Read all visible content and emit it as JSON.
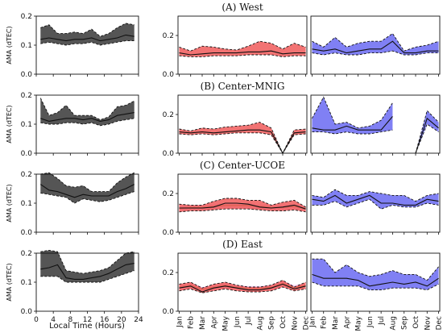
{
  "figure": {
    "xlabel_left": "Local Time (Hours)",
    "ylabel": "AMA (dTEC)",
    "row_titles": [
      "(A) West",
      "(B) Center-MNIG",
      "(C) Center-UCOE",
      "(D) East"
    ],
    "hour_ticks": [
      "0",
      "4",
      "8",
      "12",
      "16",
      "20",
      "24"
    ],
    "month_ticks": [
      "Jan",
      "Feb",
      "Mar",
      "Apr",
      "May",
      "Jun",
      "Jul",
      "Aug",
      "Sep",
      "Oct",
      "Nov",
      "Dec"
    ],
    "y_ticks": [
      "0.0",
      "0.1",
      "0.2"
    ],
    "y_ticks_right": [
      "0.0",
      "0.2"
    ]
  },
  "colors": {
    "hourly": "#555555",
    "red": "#f05a5a",
    "blue": "#6a6af2",
    "pink": "#f7c6f0",
    "olive": "#8a8a2a"
  },
  "chart_data": [
    {
      "type": "area",
      "row": "(A) West",
      "column": "hourly",
      "ylim": [
        0,
        0.2
      ],
      "xlim": [
        0,
        24
      ],
      "x": [
        1,
        3,
        5,
        7,
        9,
        11,
        13,
        15,
        17,
        19,
        21,
        23
      ],
      "mean": [
        0.12,
        0.125,
        0.12,
        0.115,
        0.12,
        0.12,
        0.125,
        0.115,
        0.12,
        0.125,
        0.135,
        0.13
      ],
      "upper": [
        0.16,
        0.17,
        0.14,
        0.14,
        0.145,
        0.14,
        0.155,
        0.13,
        0.14,
        0.16,
        0.175,
        0.17
      ],
      "lower": [
        0.105,
        0.11,
        0.105,
        0.1,
        0.105,
        0.105,
        0.11,
        0.1,
        0.105,
        0.11,
        0.115,
        0.115
      ]
    },
    {
      "type": "area",
      "row": "(A) West",
      "column": "red",
      "ylim": [
        0,
        0.3
      ],
      "x": [
        1,
        2,
        3,
        4,
        5,
        6,
        7,
        8,
        9,
        10,
        11,
        12
      ],
      "mean": [
        0.11,
        0.1,
        0.105,
        0.11,
        0.11,
        0.11,
        0.115,
        0.115,
        0.12,
        0.105,
        0.11,
        0.11
      ],
      "upper": [
        0.14,
        0.12,
        0.145,
        0.14,
        0.13,
        0.125,
        0.145,
        0.17,
        0.16,
        0.13,
        0.16,
        0.14
      ],
      "lower": [
        0.095,
        0.09,
        0.09,
        0.095,
        0.095,
        0.095,
        0.1,
        0.1,
        0.1,
        0.09,
        0.095,
        0.095
      ]
    },
    {
      "type": "area",
      "row": "(A) West",
      "column": "blue",
      "ylim": [
        0,
        0.3
      ],
      "x": [
        1,
        2,
        3,
        4,
        5,
        6,
        7,
        8,
        9,
        10,
        11,
        12
      ],
      "mean": [
        0.13,
        0.12,
        0.13,
        0.11,
        0.12,
        0.13,
        0.13,
        0.17,
        0.11,
        0.11,
        0.12,
        0.12
      ],
      "upper": [
        0.17,
        0.14,
        0.19,
        0.14,
        0.16,
        0.17,
        0.17,
        0.21,
        0.12,
        0.14,
        0.15,
        0.17
      ],
      "lower": [
        0.11,
        0.1,
        0.11,
        0.1,
        0.1,
        0.11,
        0.11,
        0.12,
        0.1,
        0.1,
        0.11,
        0.11
      ]
    },
    {
      "type": "area",
      "row": "(B) Center-MNIG",
      "column": "hourly",
      "ylim": [
        0,
        0.2
      ],
      "xlim": [
        0,
        24
      ],
      "x": [
        1,
        3,
        5,
        7,
        9,
        11,
        13,
        15,
        17,
        19,
        21,
        23
      ],
      "mean": [
        0.12,
        0.11,
        0.115,
        0.12,
        0.12,
        0.115,
        0.12,
        0.11,
        0.115,
        0.13,
        0.135,
        0.14
      ],
      "upper": [
        0.19,
        0.13,
        0.14,
        0.165,
        0.13,
        0.13,
        0.13,
        0.115,
        0.125,
        0.16,
        0.165,
        0.18
      ],
      "lower": [
        0.105,
        0.1,
        0.1,
        0.105,
        0.105,
        0.1,
        0.105,
        0.095,
        0.1,
        0.11,
        0.115,
        0.12
      ]
    },
    {
      "type": "area",
      "row": "(B) Center-MNIG",
      "column": "red",
      "ylim": [
        0,
        0.3
      ],
      "x": [
        1,
        2,
        3,
        4,
        5,
        6,
        7,
        8,
        9,
        10,
        11,
        12
      ],
      "mean": [
        0.11,
        0.105,
        0.11,
        0.105,
        0.11,
        0.115,
        0.12,
        0.12,
        0.11,
        0.0,
        0.105,
        0.11
      ],
      "upper": [
        0.125,
        0.115,
        0.13,
        0.125,
        0.135,
        0.14,
        0.145,
        0.16,
        0.13,
        0.0,
        0.12,
        0.125
      ],
      "lower": [
        0.1,
        0.095,
        0.1,
        0.095,
        0.1,
        0.105,
        0.105,
        0.105,
        0.095,
        0.0,
        0.095,
        0.1
      ]
    },
    {
      "type": "area",
      "row": "(B) Center-MNIG",
      "column": "blue",
      "ylim": [
        0,
        0.3
      ],
      "segments": [
        {
          "x": [
            1,
            2,
            3,
            4,
            5,
            6,
            7,
            8
          ],
          "mean": [
            0.13,
            0.12,
            0.12,
            0.14,
            0.12,
            0.12,
            0.12,
            0.19
          ],
          "upper": [
            0.18,
            0.29,
            0.15,
            0.16,
            0.13,
            0.14,
            0.17,
            0.26
          ],
          "lower": [
            0.11,
            0.11,
            0.1,
            0.11,
            0.1,
            0.1,
            0.11,
            0.12
          ]
        },
        {
          "x": [
            10,
            11,
            12
          ],
          "mean": [
            0.0,
            0.18,
            0.13
          ],
          "upper": [
            0.0,
            0.22,
            0.16
          ],
          "lower": [
            0.0,
            0.15,
            0.11
          ]
        }
      ]
    },
    {
      "type": "area",
      "row": "(C) Center-UCOE",
      "column": "hourly",
      "ylim": [
        0,
        0.2
      ],
      "xlim": [
        0,
        24
      ],
      "x": [
        1,
        3,
        5,
        7,
        9,
        11,
        13,
        15,
        17,
        19,
        21,
        23
      ],
      "mean": [
        0.165,
        0.145,
        0.14,
        0.13,
        0.12,
        0.13,
        0.125,
        0.125,
        0.125,
        0.14,
        0.15,
        0.165
      ],
      "upper": [
        0.2,
        0.205,
        0.185,
        0.16,
        0.155,
        0.16,
        0.14,
        0.14,
        0.14,
        0.17,
        0.19,
        0.205
      ],
      "lower": [
        0.135,
        0.13,
        0.125,
        0.12,
        0.1,
        0.115,
        0.11,
        0.105,
        0.11,
        0.12,
        0.13,
        0.14
      ]
    },
    {
      "type": "area",
      "row": "(C) Center-UCOE",
      "column": "red",
      "ylim": [
        0,
        0.3
      ],
      "x": [
        1,
        2,
        3,
        4,
        5,
        6,
        7,
        8,
        9,
        10,
        11,
        12
      ],
      "mean": [
        0.125,
        0.125,
        0.125,
        0.13,
        0.15,
        0.15,
        0.145,
        0.13,
        0.125,
        0.13,
        0.14,
        0.12
      ],
      "upper": [
        0.145,
        0.14,
        0.14,
        0.16,
        0.175,
        0.175,
        0.165,
        0.165,
        0.14,
        0.155,
        0.165,
        0.13
      ],
      "lower": [
        0.105,
        0.11,
        0.11,
        0.115,
        0.12,
        0.12,
        0.12,
        0.115,
        0.11,
        0.11,
        0.115,
        0.105
      ]
    },
    {
      "type": "area",
      "row": "(C) Center-UCOE",
      "column": "blue",
      "ylim": [
        0,
        0.3
      ],
      "x": [
        1,
        2,
        3,
        4,
        5,
        6,
        7,
        8,
        9,
        10,
        11,
        12
      ],
      "mean": [
        0.17,
        0.16,
        0.19,
        0.15,
        0.17,
        0.19,
        0.15,
        0.15,
        0.14,
        0.14,
        0.17,
        0.16
      ],
      "upper": [
        0.19,
        0.18,
        0.22,
        0.19,
        0.19,
        0.21,
        0.2,
        0.19,
        0.19,
        0.16,
        0.19,
        0.2
      ],
      "lower": [
        0.14,
        0.14,
        0.16,
        0.13,
        0.15,
        0.17,
        0.12,
        0.14,
        0.13,
        0.13,
        0.15,
        0.14
      ]
    },
    {
      "type": "area",
      "row": "(D) East",
      "column": "hourly",
      "ylim": [
        0,
        0.2
      ],
      "xlim": [
        0,
        24
      ],
      "x": [
        1,
        3,
        5,
        7,
        9,
        11,
        13,
        15,
        17,
        19,
        21,
        23
      ],
      "mean": [
        0.145,
        0.15,
        0.16,
        0.115,
        0.11,
        0.11,
        0.115,
        0.12,
        0.13,
        0.145,
        0.16,
        0.165
      ],
      "upper": [
        0.205,
        0.21,
        0.205,
        0.14,
        0.135,
        0.13,
        0.135,
        0.14,
        0.15,
        0.175,
        0.2,
        0.205
      ],
      "lower": [
        0.12,
        0.12,
        0.12,
        0.1,
        0.1,
        0.1,
        0.1,
        0.1,
        0.11,
        0.12,
        0.13,
        0.14
      ]
    },
    {
      "type": "area",
      "row": "(D) East",
      "column": "red",
      "ylim": [
        0,
        0.3
      ],
      "x": [
        1,
        2,
        3,
        4,
        5,
        6,
        7,
        8,
        9,
        10,
        11,
        12
      ],
      "mean": [
        0.12,
        0.13,
        0.1,
        0.12,
        0.13,
        0.12,
        0.11,
        0.11,
        0.12,
        0.14,
        0.115,
        0.13
      ],
      "upper": [
        0.14,
        0.15,
        0.12,
        0.14,
        0.15,
        0.135,
        0.125,
        0.125,
        0.135,
        0.16,
        0.125,
        0.15
      ],
      "lower": [
        0.105,
        0.115,
        0.095,
        0.105,
        0.115,
        0.105,
        0.1,
        0.1,
        0.105,
        0.125,
        0.105,
        0.115
      ]
    },
    {
      "type": "area",
      "row": "(D) East",
      "column": "blue",
      "ylim": [
        0,
        0.3
      ],
      "x": [
        1,
        2,
        3,
        4,
        5,
        6,
        7,
        8,
        9,
        10,
        11,
        12
      ],
      "mean": [
        0.19,
        0.17,
        0.17,
        0.17,
        0.16,
        0.13,
        0.14,
        0.15,
        0.14,
        0.15,
        0.13,
        0.17
      ],
      "upper": [
        0.27,
        0.27,
        0.2,
        0.24,
        0.2,
        0.18,
        0.19,
        0.21,
        0.19,
        0.19,
        0.16,
        0.23
      ],
      "lower": [
        0.15,
        0.13,
        0.13,
        0.13,
        0.13,
        0.11,
        0.11,
        0.12,
        0.12,
        0.12,
        0.11,
        0.14
      ]
    }
  ]
}
